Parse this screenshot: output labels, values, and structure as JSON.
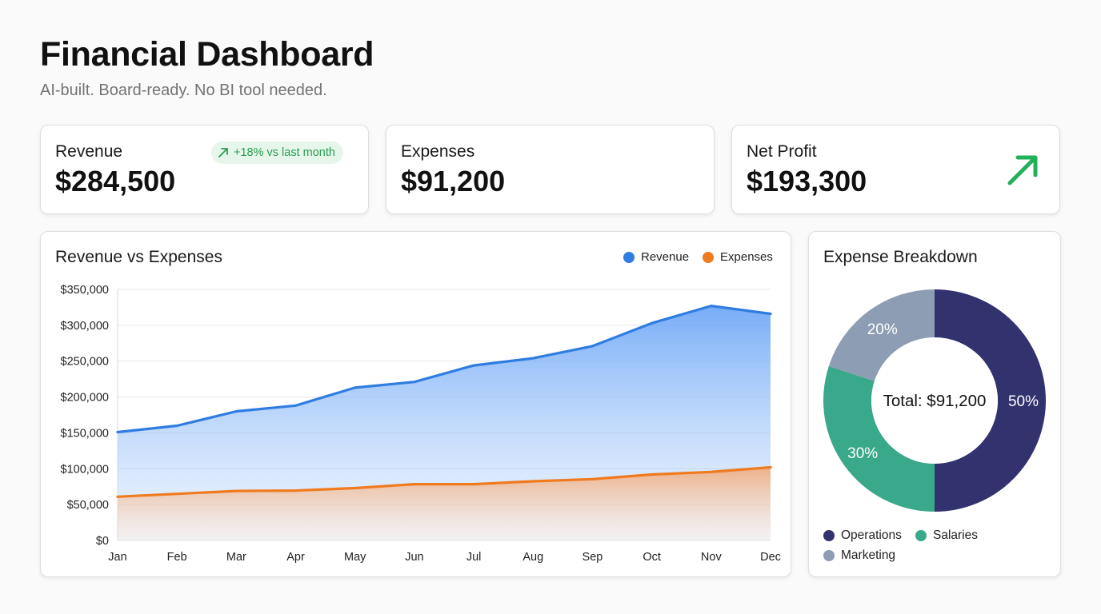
{
  "header": {
    "title": "Financial Dashboard",
    "subtitle": "AI-built. Board-ready. No BI tool needed."
  },
  "kpis": [
    {
      "label": "Revenue",
      "value": "$284,500",
      "badge": "+18% vs last month"
    },
    {
      "label": "Expenses",
      "value": "$91,200"
    },
    {
      "label": "Net Profit",
      "value": "$193,300"
    }
  ],
  "colors": {
    "revenue": "#2f7de1",
    "expenses": "#f07a1e",
    "positive": "#22b05a",
    "operations": "#32326e",
    "salaries": "#3aa88a",
    "marketing": "#8d9db3"
  },
  "icons": {
    "trend_badge": "arrow-up-right-icon",
    "net_profit": "arrow-up-right-icon"
  },
  "chart_data": [
    {
      "type": "area",
      "title": "Revenue vs Expenses",
      "categories": [
        "Jan",
        "Feb",
        "Mar",
        "Apr",
        "May",
        "Jun",
        "Jul",
        "Aug",
        "Sep",
        "Oct",
        "Nov",
        "Dec"
      ],
      "series": [
        {
          "name": "Revenue",
          "values": [
            151000,
            160000,
            180000,
            188000,
            213000,
            221000,
            244000,
            254000,
            271000,
            303000,
            327000,
            316000
          ]
        },
        {
          "name": "Expenses",
          "values": [
            61000,
            65000,
            69000,
            69500,
            73000,
            78500,
            78500,
            82500,
            85500,
            92000,
            95500,
            102000
          ]
        }
      ],
      "yticks": [
        "$350,000",
        "$300,000",
        "$250,000",
        "$200,000",
        "$150,000",
        "$100,000",
        "$50,000",
        "$0"
      ],
      "ylim": [
        0,
        350000
      ],
      "grid": true,
      "legend": "top-right"
    },
    {
      "type": "pie",
      "title": "Expense Breakdown",
      "center_label": "Total: $91,200",
      "slices": [
        {
          "name": "Operations",
          "value": 50,
          "label": "50%"
        },
        {
          "name": "Salaries",
          "value": 30,
          "label": "30%"
        },
        {
          "name": "Marketing",
          "value": 20,
          "label": "20%"
        }
      ],
      "legend": "bottom"
    }
  ]
}
